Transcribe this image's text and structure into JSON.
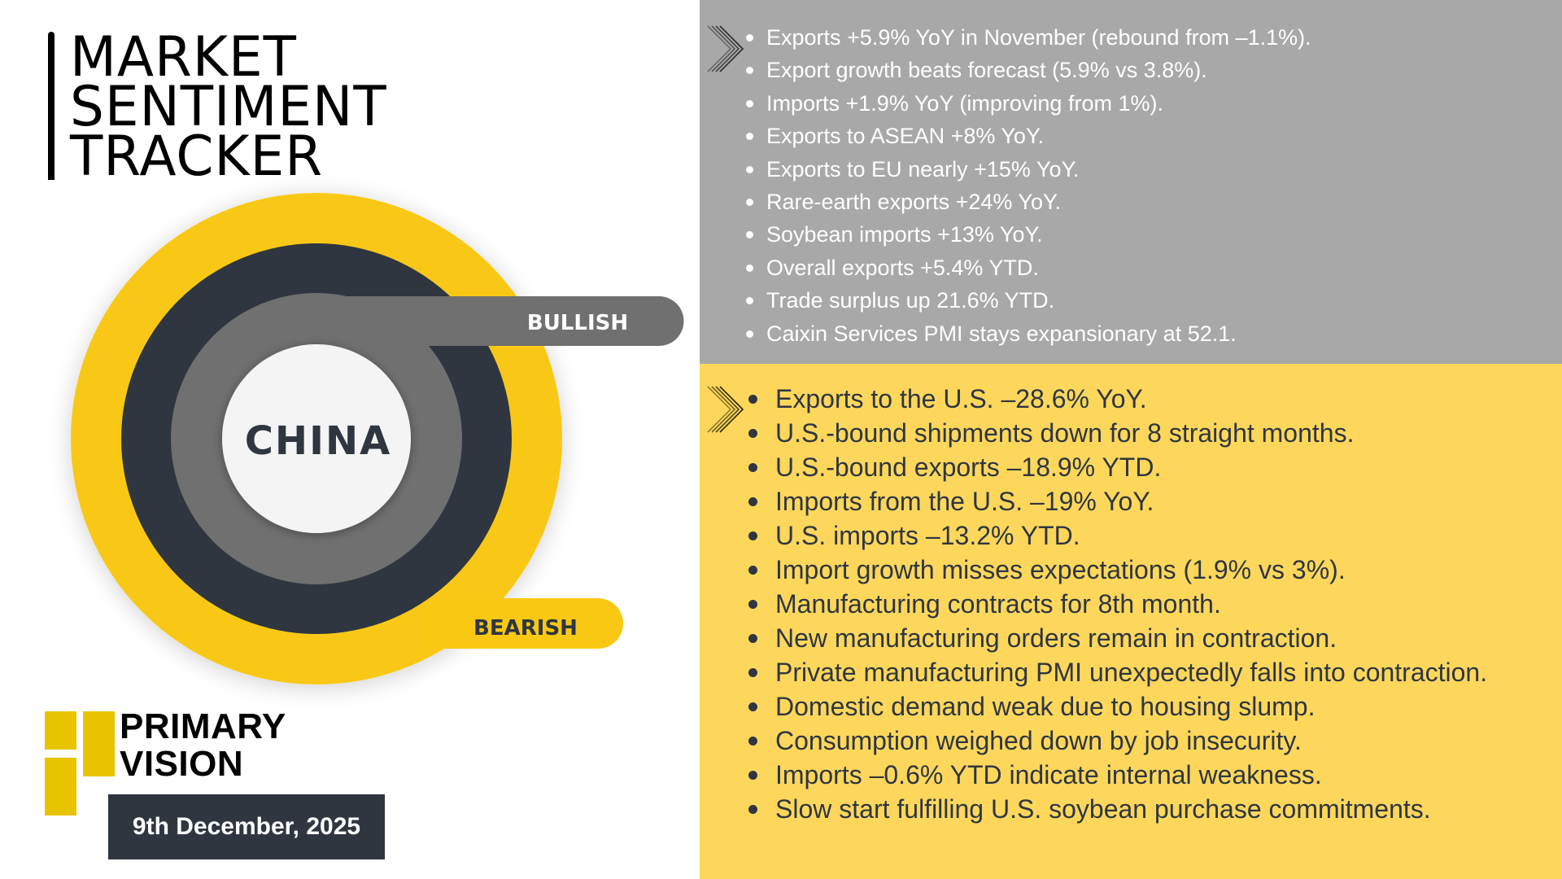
{
  "title": {
    "lines": [
      "MARKET",
      "SENTIMENT",
      "TRACKER"
    ]
  },
  "gauge": {
    "center_label": "CHINA",
    "bullish_label": "BULLISH",
    "bearish_label": "BEARISH",
    "colors": {
      "yellow": "#f9c812",
      "dark": "#2f3640",
      "gray": "#6f706f",
      "center": "#f4f4f4"
    }
  },
  "brand": {
    "line1": "PRIMARY",
    "line2": "VISION",
    "accent": "#e8c400"
  },
  "date": "9th December, 2025",
  "bullish_points": [
    "Exports +5.9% YoY in November (rebound from –1.1%).",
    "Export growth beats forecast (5.9% vs 3.8%).",
    "Imports +1.9% YoY (improving from 1%).",
    "Exports to ASEAN +8% YoY.",
    "Exports to EU nearly +15% YoY.",
    "Rare-earth exports +24% YoY.",
    "Soybean imports +13% YoY.",
    "Overall exports +5.4% YTD.",
    "Trade surplus up 21.6% YTD.",
    "Caixin Services PMI stays expansionary at 52.1."
  ],
  "bearish_points": [
    "Exports to the U.S. –28.6% YoY.",
    "U.S.-bound shipments down for 8 straight months.",
    "U.S.-bound exports –18.9% YTD.",
    "Imports from the U.S. –19% YoY.",
    "U.S. imports –13.2% YTD.",
    "Import growth misses expectations (1.9% vs 3%).",
    "Manufacturing contracts for 8th month.",
    "New manufacturing orders remain in contraction.",
    "Private manufacturing PMI unexpectedly falls into contraction.",
    "Domestic demand weak due to housing slump.",
    "Consumption weighed down by job insecurity.",
    "Imports –0.6% YTD indicate internal weakness.",
    "Slow start fulfilling U.S. soybean purchase commitments."
  ],
  "panel_colors": {
    "bullish_bg": "#a7a8a7",
    "bearish_bg": "#fdd75c"
  }
}
